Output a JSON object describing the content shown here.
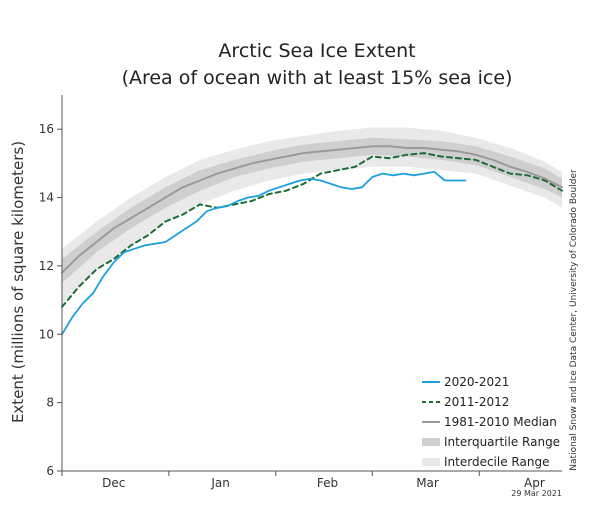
{
  "chart_data": {
    "type": "line",
    "title": "Arctic Sea Ice Extent",
    "subtitle": "(Area of ocean with at least 15% sea ice)",
    "ylabel": "Extent (millions of square kilometers)",
    "ylim": [
      6,
      17
    ],
    "yticks": [
      6,
      8,
      10,
      12,
      14,
      16
    ],
    "xlim": [
      0,
      145
    ],
    "xticks": [
      {
        "label": "Dec",
        "x": 15
      },
      {
        "label": "Jan",
        "x": 46
      },
      {
        "label": "Feb",
        "x": 77
      },
      {
        "label": "Mar",
        "x": 106
      },
      {
        "label": "Apr",
        "x": 137
      }
    ],
    "credit": "National Snow and Ice Data Center, University of Colorado Boulder",
    "date_label": "29 Mar 2021",
    "grid": false,
    "legend_position": "bottom-right",
    "series": [
      {
        "name": "2020-2021",
        "color": "#1f9ee0",
        "style": "solid",
        "x": [
          0,
          3,
          6,
          9,
          12,
          15,
          18,
          21,
          24,
          27,
          30,
          33,
          36,
          39,
          42,
          45,
          48,
          51,
          54,
          57,
          60,
          63,
          66,
          69,
          72,
          75,
          78,
          81,
          84,
          87,
          90,
          93,
          96,
          99,
          102,
          105,
          108,
          111,
          114,
          117
        ],
        "y": [
          10.0,
          10.5,
          10.9,
          11.2,
          11.7,
          12.1,
          12.4,
          12.5,
          12.6,
          12.65,
          12.7,
          12.9,
          13.1,
          13.3,
          13.6,
          13.7,
          13.75,
          13.9,
          14.0,
          14.05,
          14.2,
          14.3,
          14.4,
          14.5,
          14.55,
          14.5,
          14.4,
          14.3,
          14.25,
          14.3,
          14.6,
          14.7,
          14.65,
          14.7,
          14.65,
          14.7,
          14.75,
          14.5,
          14.5,
          14.5
        ]
      },
      {
        "name": "2011-2012",
        "color": "#1d6b35",
        "style": "dashed",
        "x": [
          0,
          5,
          10,
          15,
          20,
          25,
          30,
          35,
          40,
          45,
          50,
          55,
          60,
          65,
          70,
          75,
          80,
          85,
          90,
          95,
          100,
          105,
          110,
          115,
          120,
          125,
          130,
          135,
          140,
          145
        ],
        "y": [
          10.8,
          11.4,
          11.9,
          12.2,
          12.6,
          12.9,
          13.3,
          13.5,
          13.8,
          13.7,
          13.8,
          13.9,
          14.1,
          14.2,
          14.4,
          14.7,
          14.8,
          14.9,
          15.2,
          15.15,
          15.25,
          15.3,
          15.2,
          15.15,
          15.1,
          14.9,
          14.7,
          14.65,
          14.5,
          14.2
        ]
      },
      {
        "name": "1981-2010 Median",
        "color": "#9a9a9a",
        "style": "solid",
        "x": [
          0,
          5,
          10,
          15,
          20,
          25,
          30,
          35,
          40,
          45,
          50,
          55,
          60,
          65,
          70,
          75,
          80,
          85,
          90,
          95,
          100,
          105,
          110,
          115,
          120,
          125,
          130,
          135,
          140,
          145
        ],
        "y": [
          11.8,
          12.3,
          12.7,
          13.1,
          13.4,
          13.7,
          14.0,
          14.3,
          14.5,
          14.7,
          14.85,
          15.0,
          15.1,
          15.2,
          15.3,
          15.35,
          15.4,
          15.45,
          15.5,
          15.5,
          15.45,
          15.45,
          15.4,
          15.35,
          15.25,
          15.1,
          14.9,
          14.75,
          14.55,
          14.3
        ]
      }
    ],
    "bands": [
      {
        "name": "Interquartile Range",
        "color": "#cfcfcf",
        "x": [
          0,
          10,
          20,
          30,
          40,
          50,
          60,
          70,
          80,
          90,
          100,
          110,
          120,
          130,
          140,
          145
        ],
        "lower": [
          11.5,
          12.4,
          13.1,
          13.7,
          14.2,
          14.6,
          14.85,
          15.05,
          15.15,
          15.25,
          15.2,
          15.1,
          14.95,
          14.6,
          14.25,
          14.0
        ],
        "upper": [
          12.2,
          13.0,
          13.7,
          14.3,
          14.8,
          15.1,
          15.35,
          15.55,
          15.65,
          15.75,
          15.7,
          15.65,
          15.5,
          15.2,
          14.85,
          14.55
        ]
      },
      {
        "name": "Interdecile Range",
        "color": "#e9e9e9",
        "x": [
          0,
          10,
          20,
          30,
          40,
          50,
          60,
          70,
          80,
          90,
          100,
          110,
          120,
          130,
          140,
          145
        ],
        "lower": [
          10.9,
          11.9,
          12.6,
          13.3,
          13.8,
          14.2,
          14.5,
          14.7,
          14.8,
          14.9,
          14.9,
          14.8,
          14.7,
          14.35,
          14.0,
          13.7
        ],
        "upper": [
          12.5,
          13.3,
          14.0,
          14.6,
          15.1,
          15.4,
          15.65,
          15.8,
          15.95,
          16.05,
          16.05,
          15.95,
          15.75,
          15.45,
          15.05,
          14.75
        ]
      }
    ]
  }
}
